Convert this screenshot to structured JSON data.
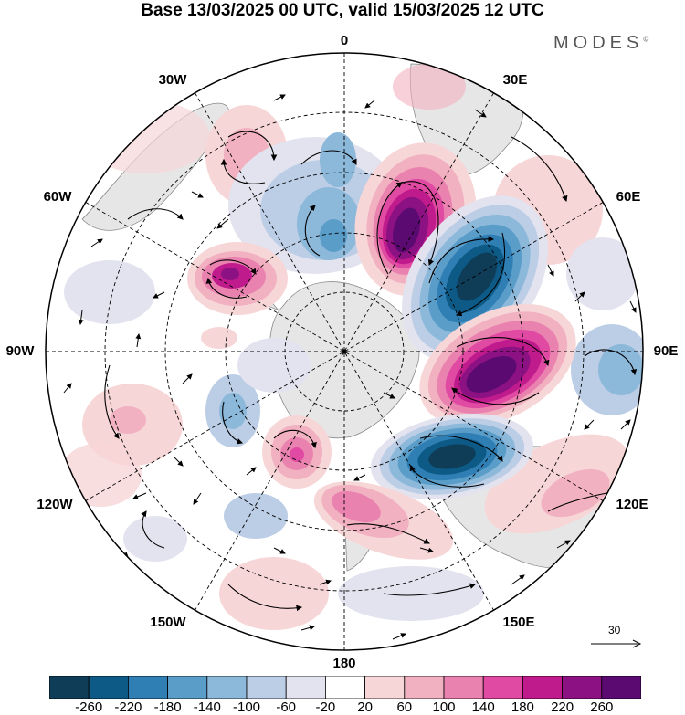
{
  "title": "Base 13/03/2025 00 UTC, valid 15/03/2025 12 UTC",
  "brand": "MODES",
  "brand_mark": "©",
  "lon_labels": {
    "lon_0": "0",
    "lon_30e": "30E",
    "lon_60e": "60E",
    "lon_90e": "90E",
    "lon_120e": "120E",
    "lon_150e": "150E",
    "lon_180": "180",
    "lon_150w": "150W",
    "lon_120w": "120W",
    "lon_90w": "90W",
    "lon_60w": "60W",
    "lon_30w": "30W"
  },
  "reference_vector": "30",
  "colorbar": {
    "ticks": [
      "-260",
      "-220",
      "-180",
      "-140",
      "-100",
      "-60",
      "-20",
      "20",
      "60",
      "100",
      "140",
      "180",
      "220",
      "260"
    ],
    "colors": [
      "#0f3c57",
      "#0d5a86",
      "#2f7fb5",
      "#5a9dc9",
      "#8cb8da",
      "#bccde6",
      "#e3e3ef",
      "#ffffff",
      "#f7d6d8",
      "#f1b1c0",
      "#ea82b0",
      "#e04aa2",
      "#c01b8d",
      "#8c1283",
      "#5b0a71"
    ]
  },
  "colors": {
    "land": "#e6e6e6",
    "coast": "#8a8a8a",
    "grid": "#000000"
  }
}
